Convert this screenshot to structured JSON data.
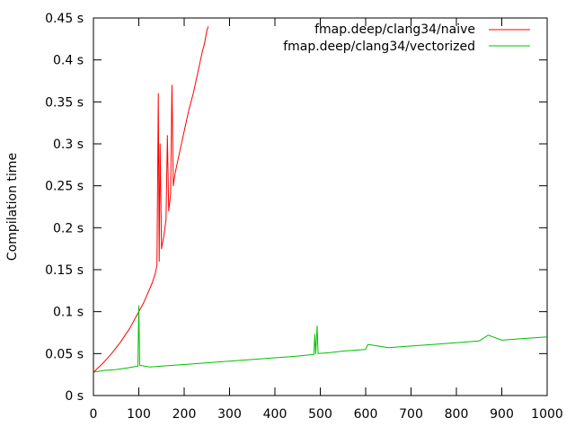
{
  "chart_data": {
    "type": "line",
    "title": "",
    "xlabel": "",
    "ylabel": "Compilation time",
    "xlim": [
      0,
      1000
    ],
    "ylim": [
      0,
      0.45
    ],
    "x_ticks": [
      0,
      100,
      200,
      300,
      400,
      500,
      600,
      700,
      800,
      900,
      1000
    ],
    "x_tick_labels": [
      "0",
      "100",
      "200",
      "300",
      "400",
      "500",
      "600",
      "700",
      "800",
      "900",
      "1000"
    ],
    "y_ticks": [
      0,
      0.05,
      0.1,
      0.15,
      0.2,
      0.25,
      0.3,
      0.35,
      0.4,
      0.45
    ],
    "y_tick_labels": [
      "0 s",
      "0.05 s",
      "0.1 s",
      "0.15 s",
      "0.2 s",
      "0.25 s",
      "0.3 s",
      "0.35 s",
      "0.4 s",
      "0.45 s"
    ],
    "grid": false,
    "legend_position": "top-right",
    "series": [
      {
        "name": "fmap.deep/clang34/naive",
        "color": "#ff0000",
        "x": [
          1,
          10,
          20,
          30,
          40,
          50,
          60,
          70,
          80,
          90,
          100,
          110,
          120,
          130,
          136,
          140,
          143,
          145,
          147,
          150,
          155,
          160,
          163,
          166,
          170,
          173,
          176,
          180,
          190,
          200,
          210,
          220,
          230,
          240,
          245,
          250,
          253
        ],
        "y": [
          0.028,
          0.033,
          0.038,
          0.044,
          0.05,
          0.057,
          0.064,
          0.072,
          0.08,
          0.09,
          0.1,
          0.11,
          0.122,
          0.135,
          0.145,
          0.155,
          0.36,
          0.16,
          0.3,
          0.175,
          0.19,
          0.21,
          0.31,
          0.22,
          0.24,
          0.37,
          0.25,
          0.265,
          0.29,
          0.315,
          0.34,
          0.36,
          0.385,
          0.41,
          0.42,
          0.435,
          0.44
        ]
      },
      {
        "name": "fmap.deep/clang34/vectorized",
        "color": "#00c000",
        "x": [
          1,
          25,
          50,
          75,
          98,
          100,
          102,
          125,
          150,
          175,
          200,
          250,
          300,
          350,
          400,
          450,
          486,
          488,
          490,
          493,
          495,
          520,
          550,
          600,
          605,
          650,
          700,
          750,
          800,
          850,
          870,
          900,
          950,
          1000
        ],
        "y": [
          0.028,
          0.03,
          0.031,
          0.033,
          0.035,
          0.107,
          0.036,
          0.034,
          0.035,
          0.036,
          0.037,
          0.039,
          0.041,
          0.043,
          0.045,
          0.047,
          0.049,
          0.073,
          0.05,
          0.083,
          0.05,
          0.051,
          0.053,
          0.055,
          0.061,
          0.057,
          0.059,
          0.061,
          0.063,
          0.065,
          0.072,
          0.066,
          0.068,
          0.07
        ]
      }
    ]
  }
}
